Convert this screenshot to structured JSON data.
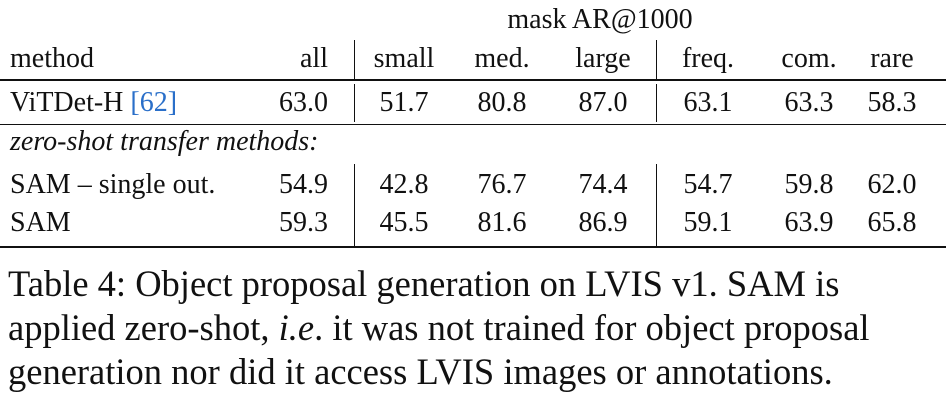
{
  "table": {
    "group_header": "mask AR@1000",
    "columns": [
      "method",
      "all",
      "small",
      "med.",
      "large",
      "freq.",
      "com.",
      "rare"
    ],
    "rows": [
      {
        "method": "ViTDet-H",
        "citation": "[62]",
        "values": [
          "63.0",
          "51.7",
          "80.8",
          "87.0",
          "63.1",
          "63.3",
          "58.3"
        ]
      }
    ],
    "section_label": "zero-shot transfer methods:",
    "zero_shot_rows": [
      {
        "method": "SAM – single out.",
        "values": [
          "54.9",
          "42.8",
          "76.7",
          "74.4",
          "54.7",
          "59.8",
          "62.0"
        ]
      },
      {
        "method": "SAM",
        "values": [
          "59.3",
          "45.5",
          "81.6",
          "86.9",
          "59.1",
          "63.9",
          "65.8"
        ]
      }
    ]
  },
  "caption": {
    "label": "Table 4:",
    "line1_rest": "Object proposal generation on LVIS v1.  SAM is",
    "line2_a": "applied zero-shot, ",
    "line2_ie": "i.e",
    "line2_b": ". it was not trained for object proposal",
    "line3": "generation nor did it access LVIS images or annotations."
  }
}
